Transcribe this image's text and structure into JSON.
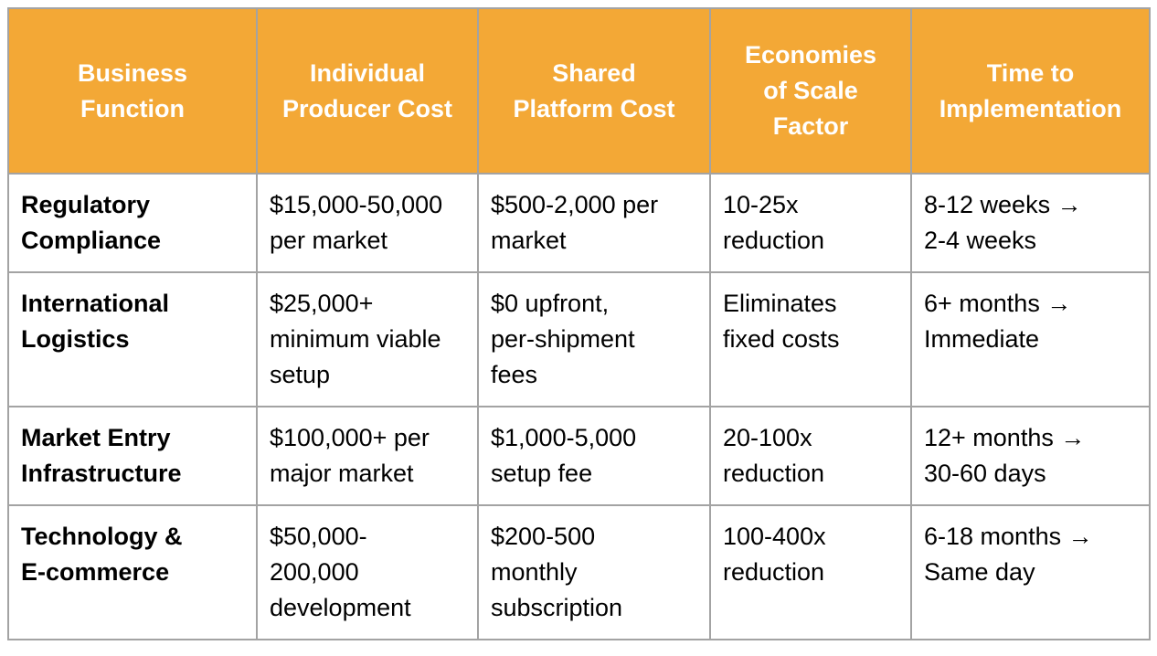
{
  "table": {
    "headers": [
      "Business Function",
      "Individual Producer Cost",
      "Shared Platform Cost",
      "Economies of Scale Factor",
      "Time to Implementation"
    ],
    "header_lines": [
      [
        "Business",
        "Function"
      ],
      [
        "Individual",
        "Producer Cost"
      ],
      [
        "Shared",
        "Platform Cost"
      ],
      [
        "Economies",
        "of Scale",
        "Factor"
      ],
      [
        "Time to",
        "Implementation"
      ]
    ],
    "header_color": "#f3a836",
    "rows": [
      {
        "function": [
          "Regulatory",
          "Compliance"
        ],
        "individual_cost": [
          "$15,000-50,000",
          "per market"
        ],
        "shared_cost": [
          "$500-2,000 per",
          "market"
        ],
        "scale_factor": [
          "10-25x",
          "reduction"
        ],
        "time": [
          "8-12 weeks →",
          "2-4 weeks"
        ]
      },
      {
        "function": [
          "International",
          "Logistics"
        ],
        "individual_cost": [
          "$25,000+",
          "minimum viable",
          "setup"
        ],
        "shared_cost": [
          "$0 upfront,",
          "per-shipment",
          "fees"
        ],
        "scale_factor": [
          "Eliminates",
          "fixed costs"
        ],
        "time": [
          "6+ months →",
          "Immediate"
        ]
      },
      {
        "function": [
          "Market Entry",
          "Infrastructure"
        ],
        "individual_cost": [
          "$100,000+ per",
          "major market"
        ],
        "shared_cost": [
          "$1,000-5,000",
          "setup fee"
        ],
        "scale_factor": [
          "20-100x",
          "reduction"
        ],
        "time": [
          "12+ months →",
          "30-60 days"
        ]
      },
      {
        "function": [
          "Technology &",
          "E-commerce"
        ],
        "individual_cost": [
          "$50,000-",
          "200,000",
          "development"
        ],
        "shared_cost": [
          "$200-500",
          "monthly",
          "subscription"
        ],
        "scale_factor": [
          "100-400x",
          "reduction"
        ],
        "time": [
          "6-18 months →",
          "Same day"
        ]
      }
    ]
  }
}
